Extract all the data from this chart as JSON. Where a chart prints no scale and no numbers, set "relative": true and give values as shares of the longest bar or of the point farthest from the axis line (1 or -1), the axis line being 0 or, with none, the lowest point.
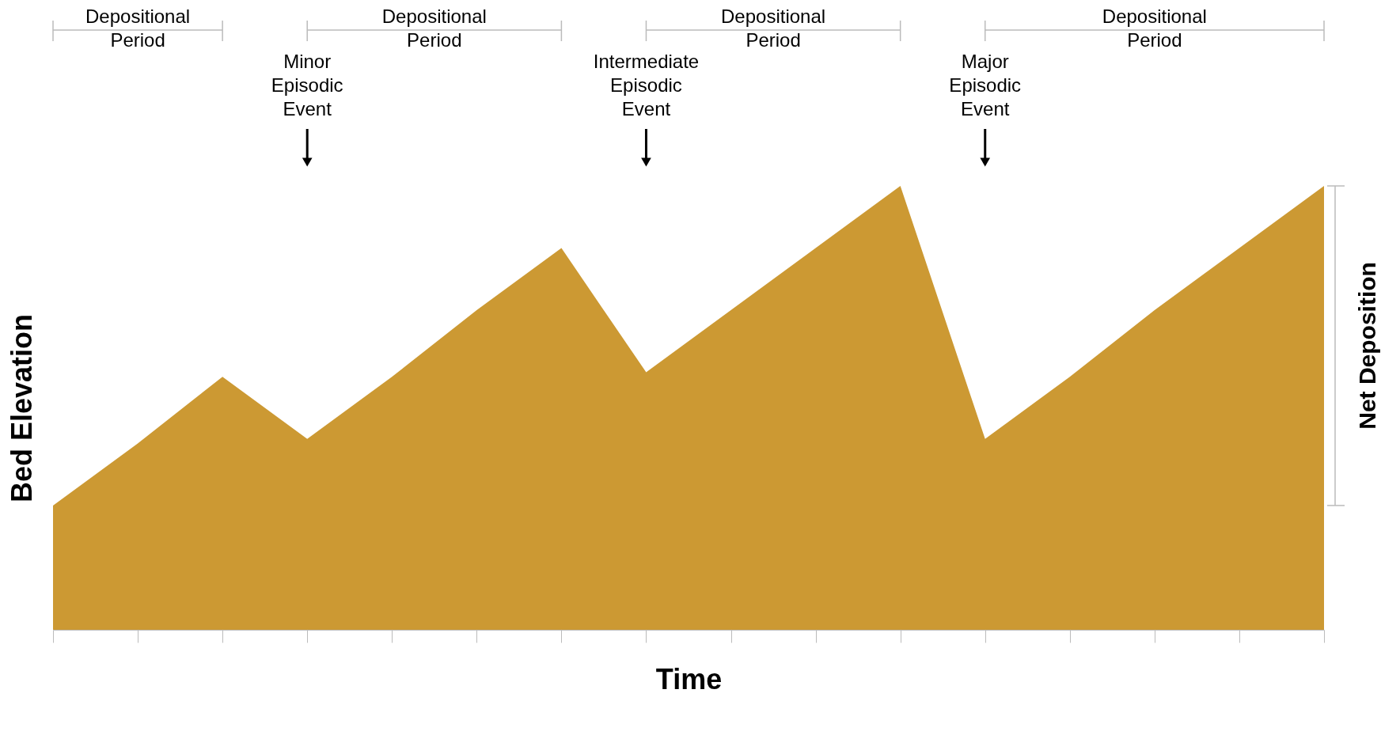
{
  "chart_data": {
    "type": "area",
    "relative": true,
    "categories": [
      null,
      null,
      null,
      null,
      null,
      null,
      null,
      null,
      null,
      null,
      null,
      null,
      null,
      null,
      null,
      null
    ],
    "values": [
      0.28,
      0.42,
      0.57,
      0.43,
      0.57,
      0.72,
      0.86,
      0.58,
      0.72,
      0.86,
      1.0,
      0.43,
      0.57,
      0.72,
      0.86,
      1.0
    ],
    "color": "#cc9933",
    "xlabel": "Time",
    "ylabel": "Bed Elevation",
    "annotations": [
      "Depositional Period",
      "Depositional Period",
      "Depositional Period",
      "Depositional Period",
      "Minor Episodic Event",
      "Intermediate Episodic Event",
      "Major Episodic Event",
      "Net Deposition"
    ]
  }
}
